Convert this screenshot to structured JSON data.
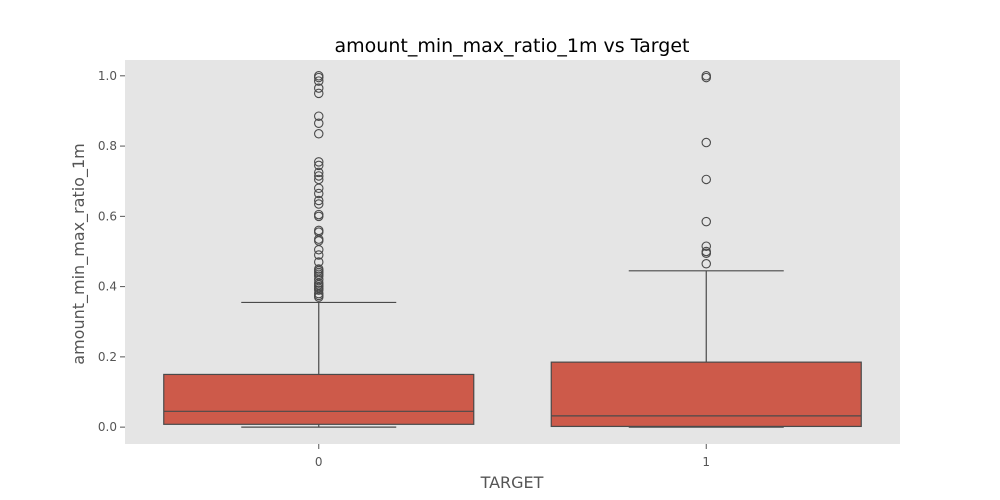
{
  "chart_data": {
    "type": "box",
    "title": "amount_min_max_ratio_1m vs Target",
    "xlabel": "TARGET",
    "ylabel": "amount_min_max_ratio_1m",
    "categories": [
      "0",
      "1"
    ],
    "ylim": [
      -0.048,
      1.045
    ],
    "yticks": [
      0.0,
      0.2,
      0.4,
      0.6,
      0.8,
      1.0
    ],
    "ytick_labels": [
      "0.0",
      "0.2",
      "0.4",
      "0.6",
      "0.8",
      "1.0"
    ],
    "grid": false,
    "background": "#e5e5e5",
    "box_color": "#cd5a4a",
    "line_color": "#4a4a4a",
    "boxes": [
      {
        "category": "0",
        "whisker_low": 0.0,
        "q1": 0.008,
        "median": 0.045,
        "q3": 0.15,
        "whisker_high": 0.355,
        "outliers": [
          0.37,
          0.375,
          0.38,
          0.39,
          0.395,
          0.4,
          0.405,
          0.41,
          0.42,
          0.43,
          0.435,
          0.44,
          0.445,
          0.45,
          0.47,
          0.49,
          0.505,
          0.53,
          0.535,
          0.555,
          0.56,
          0.6,
          0.605,
          0.635,
          0.645,
          0.665,
          0.68,
          0.705,
          0.715,
          0.725,
          0.745,
          0.755,
          0.835,
          0.865,
          0.885,
          0.95,
          0.965,
          0.985,
          0.995,
          1.0
        ]
      },
      {
        "category": "1",
        "whisker_low": 0.0,
        "q1": 0.002,
        "median": 0.032,
        "q3": 0.185,
        "whisker_high": 0.445,
        "outliers": [
          0.465,
          0.495,
          0.5,
          0.515,
          0.585,
          0.705,
          0.81,
          0.995,
          1.0
        ]
      }
    ]
  }
}
